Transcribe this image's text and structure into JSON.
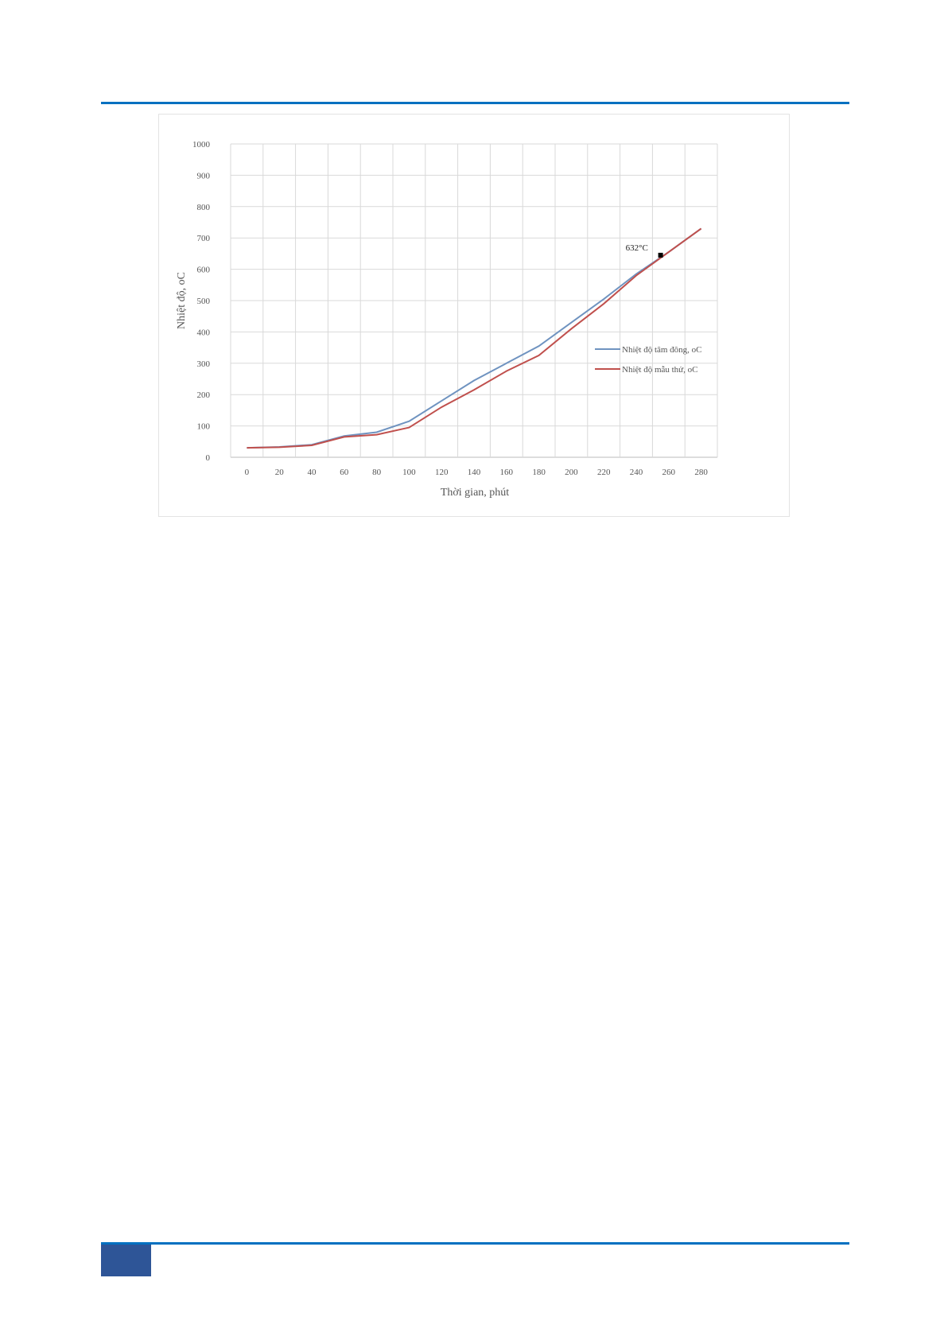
{
  "chart_data": {
    "type": "line",
    "xlabel": "Thời gian, phút",
    "ylabel": "Nhiệt độ, oC",
    "categories": [
      0,
      20,
      40,
      60,
      80,
      100,
      120,
      140,
      160,
      180,
      200,
      220,
      240,
      260,
      280
    ],
    "ylim": [
      0,
      1000
    ],
    "yticks": [
      0,
      100,
      200,
      300,
      400,
      500,
      600,
      700,
      800,
      900,
      1000
    ],
    "grid": true,
    "legend_position": "right",
    "series": [
      {
        "name": "Nhiệt độ tâm đông, oC",
        "color": "#6f93c0",
        "values": [
          30,
          33,
          40,
          68,
          80,
          115,
          180,
          245,
          300,
          355,
          430,
          505,
          585,
          655,
          730
        ]
      },
      {
        "name": "Nhiệt độ mẫu thử, oC",
        "color": "#c0504d",
        "values": [
          30,
          32,
          38,
          65,
          72,
          95,
          160,
          215,
          275,
          325,
          410,
          490,
          580,
          655,
          730
        ]
      }
    ],
    "annotation": {
      "text": "632°C",
      "x": 255,
      "y": 645
    }
  }
}
